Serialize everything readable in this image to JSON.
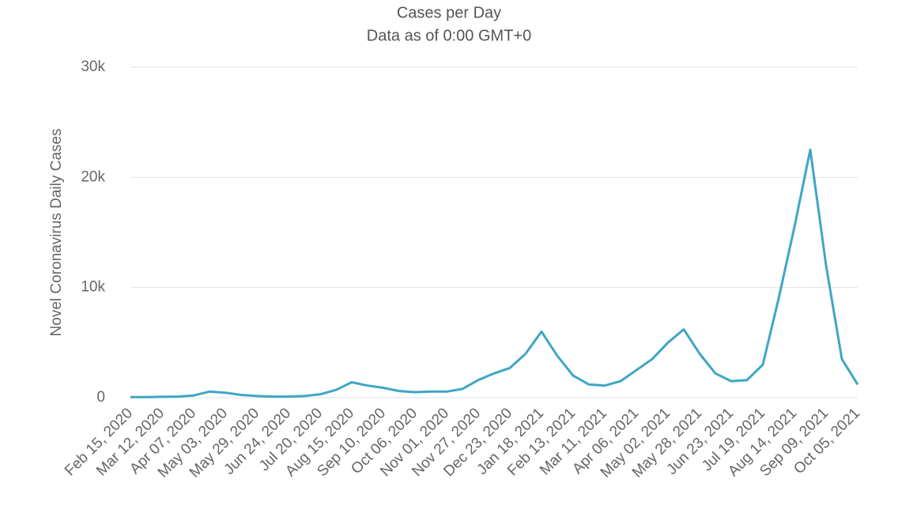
{
  "chart_data": {
    "type": "line",
    "title": "Cases per Day",
    "subtitle": "Data as of 0:00 GMT+0",
    "y_label": "Novel Coronavirus Daily Cases",
    "categories": [
      "Feb 15, 2020",
      null,
      "Mar 12, 2020",
      null,
      "Apr 07, 2020",
      null,
      "May 03, 2020",
      null,
      "May 29, 2020",
      null,
      "Jun 24, 2020",
      null,
      "Jul 20, 2020",
      null,
      "Aug 15, 2020",
      null,
      "Sep 10, 2020",
      null,
      "Oct 06, 2020",
      null,
      "Nov 01, 2020",
      null,
      "Nov 27, 2020",
      null,
      "Dec 23, 2020",
      null,
      "Jan 18, 2021",
      null,
      "Feb 13, 2021",
      null,
      "Mar 11, 2021",
      null,
      "Apr 06, 2021",
      null,
      "May 02, 2021",
      null,
      "May 28, 2021",
      null,
      "Jun 23, 2021",
      null,
      "Jul 19, 2021",
      null,
      "Aug 14, 2021",
      null,
      "Sep 09, 2021",
      null,
      "Oct 05, 2021"
    ],
    "values": [
      50,
      60,
      80,
      100,
      200,
      550,
      450,
      250,
      150,
      100,
      100,
      150,
      300,
      700,
      1400,
      1100,
      900,
      600,
      500,
      550,
      550,
      800,
      1600,
      2200,
      2700,
      4000,
      6000,
      3800,
      2000,
      1200,
      1100,
      1500,
      2500,
      3500,
      5000,
      6200,
      4000,
      2200,
      1500,
      1600,
      3000,
      9000,
      15500,
      22500,
      12000,
      3500,
      1200
    ],
    "color": "#3ea6c5",
    "ylim": [
      0,
      30000
    ],
    "yticks": [
      0,
      {
        "value": 10000,
        "label": "10k"
      },
      {
        "value": 20000,
        "label": "20k"
      },
      {
        "value": 30000,
        "label": "30k"
      }
    ],
    "grid": true
  }
}
